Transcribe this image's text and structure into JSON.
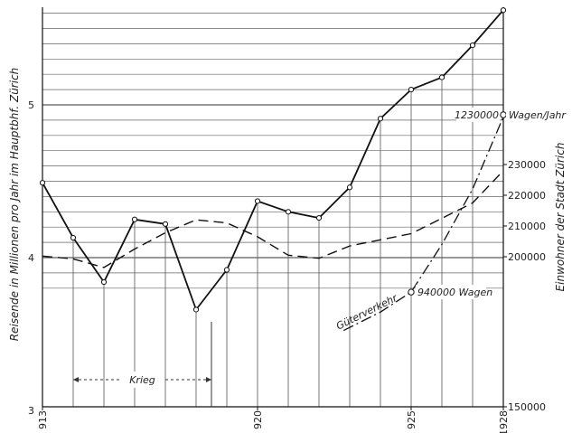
{
  "chart_data": {
    "type": "line",
    "title": "",
    "ylabel_left": "Reisende in Millionen pro Jahr im Hauptbhf. Zürich",
    "ylabel_right": "Einwohner der Stadt Zürich",
    "ylim_left": [
      3,
      5.6
    ],
    "ylim_right": [
      150000,
      235000
    ],
    "xlim": [
      1913,
      1928
    ],
    "x_tick_labels": [
      {
        "x": 1913,
        "label": "913"
      },
      {
        "x": 1920,
        "label": "920"
      },
      {
        "x": 1925,
        "label": "925"
      },
      {
        "x": 1928,
        "label": "1928"
      }
    ],
    "y_left_tick_labels": [
      {
        "y": 3,
        "label": "3"
      },
      {
        "y": 4,
        "label": "4"
      },
      {
        "y": 5,
        "label": "5"
      }
    ],
    "y_right_tick_labels": [
      {
        "y": 150000,
        "label": "150000"
      },
      {
        "y": 200000,
        "label": "200000"
      },
      {
        "y": 210000,
        "label": "210000"
      },
      {
        "y": 220000,
        "label": "220000"
      },
      {
        "y": 230000,
        "label": "230000"
      }
    ],
    "grid": true,
    "series": [
      {
        "axis": "left",
        "style": "solid",
        "x": [
          1913,
          1914,
          1915,
          1916,
          1917,
          1918,
          1919,
          1920,
          1921,
          1922,
          1923,
          1924,
          1925,
          1926,
          1927,
          1928
        ],
        "values": [
          4.49,
          4.13,
          3.84,
          4.25,
          4.22,
          3.66,
          3.92,
          4.37,
          4.3,
          4.26,
          4.46,
          4.91,
          5.1,
          5.18,
          5.39,
          5.62
        ]
      },
      {
        "axis": "right",
        "style": "dashed",
        "x": [
          1913,
          1914,
          1915,
          1916,
          1917,
          1918,
          1919,
          1920,
          1921,
          1922,
          1923,
          1924,
          1925,
          1926,
          1927,
          1928
        ],
        "values": [
          200200,
          199300,
          196500,
          202500,
          207800,
          212000,
          211000,
          206500,
          200500,
          199500,
          203500,
          205500,
          207500,
          212500,
          217500,
          228000
        ]
      },
      {
        "axis": "right",
        "style": "dash-dot",
        "name": "Güterverkehr",
        "x": [
          1922.8,
          1924,
          1925,
          1926,
          1927,
          1928
        ],
        "values": [
          176000,
          182000,
          188500,
          204000,
          222000,
          245500
        ]
      }
    ],
    "annotations": [
      {
        "text": "Krieg",
        "x_from": 1914,
        "x_to": 1918.5
      },
      {
        "text": "940000 Wagen",
        "x": 1925,
        "series": 2
      },
      {
        "text": "1230000 Wagen/Jahr",
        "x": 1928,
        "series": 2
      },
      {
        "text": "Güterverkehr",
        "series": 2
      }
    ]
  }
}
